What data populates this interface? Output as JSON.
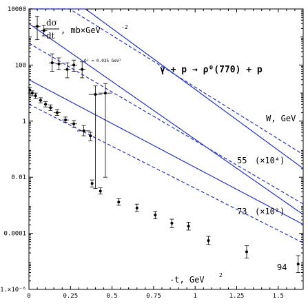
{
  "chart_data": {
    "type": "scatter",
    "title": "γ + p → ρ⁰(770) + p",
    "ylabel_num": "dσ",
    "ylabel_den": "dt",
    "ylabel_unit": ", mb×GeV",
    "ylabel_unit_exp": "-2",
    "xlabel_main": "-t, GeV",
    "xlabel_exp": "2",
    "w_label": "W, GeV",
    "q2_annotation": "Q² = 0.035 GeV²",
    "y_scale": "log",
    "xlim": [
      0,
      1.65
    ],
    "ylim": [
      1e-06,
      10000
    ],
    "x_ticks": [
      {
        "v": 0,
        "t": "0"
      },
      {
        "v": 0.25,
        "t": "0.25"
      },
      {
        "v": 0.5,
        "t": "0.5"
      },
      {
        "v": 0.75,
        "t": "0.75"
      },
      {
        "v": 1,
        "t": "1"
      },
      {
        "v": 1.25,
        "t": "1.25"
      },
      {
        "v": 1.5,
        "t": "1.5"
      }
    ],
    "y_ticks": [
      {
        "v": 10000,
        "t": "10000"
      },
      {
        "v": 100,
        "t": "100"
      },
      {
        "v": 1,
        "t": "1"
      },
      {
        "v": 0.01,
        "t": "0.01"
      },
      {
        "v": 0.0001,
        "t": "0.0001"
      },
      {
        "v": 1e-06,
        "t": "1.×10⁻⁶"
      }
    ],
    "grid": false,
    "series": [
      {
        "name": "55 (×10⁴)",
        "label_main": "55",
        "label_mult": "(×10⁴)",
        "scale": 10000,
        "slope": 10.0,
        "dashed_scale": 80000,
        "dashed_slope": 8.5,
        "points": [
          {
            "x": 0.05,
            "y": 2400,
            "xerr": 0.02,
            "ylo": 800,
            "yhi": 5500
          },
          {
            "x": 0.09,
            "y": 1700,
            "xerr": 0.02,
            "ylo": 1100,
            "yhi": 2600
          },
          {
            "x": 0.14,
            "y": 120,
            "xerr": 0.02,
            "ylo": 60,
            "yhi": 250
          },
          {
            "x": 0.18,
            "y": 110,
            "xerr": 0.02,
            "ylo": 70,
            "yhi": 180
          },
          {
            "x": 0.23,
            "y": 70,
            "xerr": 0.02,
            "ylo": 35,
            "yhi": 120
          },
          {
            "x": 0.27,
            "y": 100,
            "xerr": 0.02,
            "ylo": 60,
            "yhi": 150
          },
          {
            "x": 0.32,
            "y": 70,
            "xerr": 0.02,
            "ylo": 35,
            "yhi": 130
          },
          {
            "x": 0.4,
            "y": 9.0,
            "xerr": 0.04,
            "ylo": 0.004,
            "yhi": 18
          },
          {
            "x": 0.46,
            "y": 10.0,
            "xerr": 0.04,
            "ylo": 0.01,
            "yhi": 22
          }
        ]
      },
      {
        "name": "73 (×10²)",
        "label_main": "73",
        "label_mult": "(×10²)",
        "scale": 100,
        "slope": 9.5,
        "dashed_scale": 600,
        "dashed_slope": 8.0,
        "points": [
          {
            "x": 0.005,
            "y": 13.0,
            "xerr": 0.005,
            "ylo": 10,
            "yhi": 16
          },
          {
            "x": 0.02,
            "y": 10.0,
            "xerr": 0.005,
            "ylo": 8,
            "yhi": 12
          },
          {
            "x": 0.04,
            "y": 8.0,
            "xerr": 0.008,
            "ylo": 6.5,
            "yhi": 10
          },
          {
            "x": 0.07,
            "y": 5.5,
            "xerr": 0.01,
            "ylo": 4.5,
            "yhi": 6.8
          },
          {
            "x": 0.1,
            "y": 4.0,
            "xerr": 0.01,
            "ylo": 3.2,
            "yhi": 5.0
          },
          {
            "x": 0.13,
            "y": 3.0,
            "xerr": 0.015,
            "ylo": 2.4,
            "yhi": 3.8
          },
          {
            "x": 0.17,
            "y": 2.0,
            "xerr": 0.02,
            "ylo": 1.6,
            "yhi": 2.6
          },
          {
            "x": 0.22,
            "y": 1.1,
            "xerr": 0.02,
            "ylo": 0.9,
            "yhi": 1.4
          },
          {
            "x": 0.27,
            "y": 0.8,
            "xerr": 0.02,
            "ylo": 0.6,
            "yhi": 1.05
          },
          {
            "x": 0.33,
            "y": 0.45,
            "xerr": 0.04,
            "ylo": 0.3,
            "yhi": 0.7
          },
          {
            "x": 0.37,
            "y": 0.3,
            "xerr": 0.01,
            "ylo": 0.2,
            "yhi": 0.4
          }
        ]
      },
      {
        "name": "94",
        "label_main": "94",
        "label_mult": "",
        "scale": 1,
        "slope": 7.2,
        "dashed_scale": 4,
        "dashed_slope": 6.9,
        "points": [
          {
            "x": 0.38,
            "y": 0.006,
            "xerr": 0.0,
            "ylo": 0.0045,
            "yhi": 0.008
          },
          {
            "x": 0.43,
            "y": 0.0032,
            "xerr": 0.0,
            "ylo": 0.0025,
            "yhi": 0.0042
          },
          {
            "x": 0.54,
            "y": 0.0013,
            "xerr": 0.0,
            "ylo": 0.001,
            "yhi": 0.0017
          },
          {
            "x": 0.65,
            "y": 0.0008,
            "xerr": 0.0,
            "ylo": 0.0006,
            "yhi": 0.0011
          },
          {
            "x": 0.76,
            "y": 0.00045,
            "xerr": 0.0,
            "ylo": 0.00033,
            "yhi": 0.0006
          },
          {
            "x": 0.86,
            "y": 0.00023,
            "xerr": 0.0,
            "ylo": 0.00016,
            "yhi": 0.00032
          },
          {
            "x": 0.96,
            "y": 0.00018,
            "xerr": 0.0,
            "ylo": 0.00013,
            "yhi": 0.00025
          },
          {
            "x": 1.08,
            "y": 5.5e-05,
            "xerr": 0.0,
            "ylo": 4e-05,
            "yhi": 7.8e-05
          },
          {
            "x": 1.31,
            "y": 2.2e-05,
            "xerr": 0.0,
            "ylo": 1.3e-05,
            "yhi": 3.6e-05
          },
          {
            "x": 1.62,
            "y": 8e-06,
            "xerr": 0.0,
            "ylo": 4e-06,
            "yhi": 1.6e-05
          }
        ]
      }
    ],
    "colors": {
      "curve": "#2233cc",
      "points": "#000000",
      "axis": "#000000"
    }
  }
}
